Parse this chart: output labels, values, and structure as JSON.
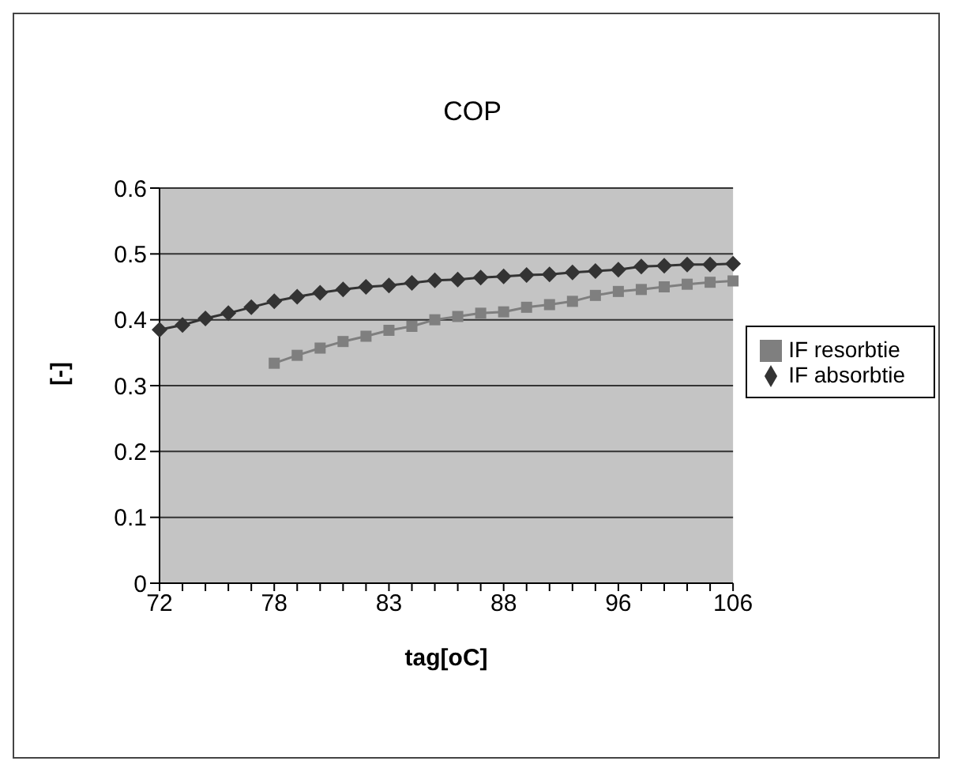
{
  "chart_data": {
    "type": "line",
    "title": "COP",
    "xlabel": "tag[oC]",
    "ylabel": "[-]",
    "categories": [
      "72",
      null,
      null,
      null,
      null,
      "78",
      null,
      null,
      null,
      null,
      "83",
      null,
      null,
      null,
      null,
      "88",
      null,
      null,
      null,
      null,
      "96",
      null,
      null,
      null,
      null,
      "106"
    ],
    "series": [
      {
        "name": "IF resorbtie",
        "color": "#7f7f7f",
        "marker": "square",
        "values": [
          null,
          null,
          null,
          null,
          null,
          0.334,
          0.346,
          0.357,
          0.367,
          0.375,
          0.384,
          0.39,
          0.4,
          0.405,
          0.41,
          0.412,
          0.419,
          0.423,
          0.428,
          0.437,
          0.443,
          0.446,
          0.45,
          0.454,
          0.457,
          0.459
        ]
      },
      {
        "name": "IF absorbtie",
        "color": "#333333",
        "marker": "diamond",
        "values": [
          0.385,
          0.392,
          0.402,
          0.41,
          0.419,
          0.428,
          0.435,
          0.441,
          0.446,
          0.45,
          0.452,
          0.456,
          0.46,
          0.461,
          0.464,
          0.466,
          0.468,
          0.469,
          0.472,
          0.474,
          0.476,
          0.481,
          0.482,
          0.484,
          0.484,
          0.485
        ]
      }
    ],
    "ylim": [
      0,
      0.6
    ],
    "yticks": [
      0,
      0.1,
      0.2,
      0.3,
      0.4,
      0.5,
      0.6
    ],
    "grid": "y",
    "legend": "right",
    "line_style": "solid"
  }
}
